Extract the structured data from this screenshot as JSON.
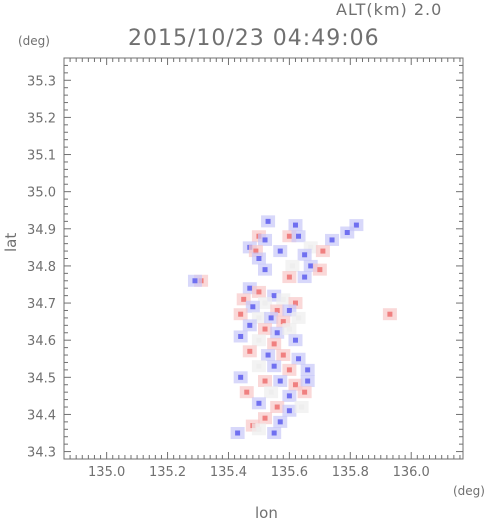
{
  "header": {
    "altitude_label": "ALT(km) 2.0",
    "timestamp": "2015/10/23 04:49:06"
  },
  "chart_data": {
    "type": "heatmap",
    "title": "2015/10/23 04:49:06",
    "xlabel": "lon",
    "ylabel": "lat",
    "x_unit": "(deg)",
    "y_unit": "(deg)",
    "xlim": [
      134.86,
      136.17
    ],
    "ylim": [
      34.28,
      35.36
    ],
    "x_ticks": [
      135.0,
      135.2,
      135.4,
      135.6,
      135.8,
      136.0
    ],
    "x_tick_labels": [
      "135.0",
      "135.2",
      "135.4",
      "135.6",
      "135.8",
      "136.0"
    ],
    "y_ticks": [
      34.3,
      34.4,
      34.5,
      34.6,
      34.7,
      34.8,
      34.9,
      35.0,
      35.1,
      35.2,
      35.3
    ],
    "y_tick_labels": [
      "34.3",
      "34.4",
      "34.5",
      "34.6",
      "34.7",
      "34.8",
      "34.9",
      "35.0",
      "35.1",
      "35.2",
      "35.3"
    ],
    "grid": false,
    "colors": {
      "positive": "#f08080",
      "positive_light": "#f8c8c8",
      "negative": "#7070f0",
      "negative_light": "#c8c8f8",
      "neutral_light": "#eeeeee"
    },
    "cells": [
      {
        "lon": 135.53,
        "lat": 34.92,
        "v": -1
      },
      {
        "lon": 135.62,
        "lat": 34.91,
        "v": -1
      },
      {
        "lon": 135.82,
        "lat": 34.91,
        "v": -1
      },
      {
        "lon": 135.79,
        "lat": 34.89,
        "v": -1
      },
      {
        "lon": 135.5,
        "lat": 34.88,
        "v": 1
      },
      {
        "lon": 135.52,
        "lat": 34.87,
        "v": -1
      },
      {
        "lon": 135.6,
        "lat": 34.88,
        "v": 1
      },
      {
        "lon": 135.63,
        "lat": 34.88,
        "v": -1
      },
      {
        "lon": 135.74,
        "lat": 34.87,
        "v": -1
      },
      {
        "lon": 135.47,
        "lat": 34.85,
        "v": -1
      },
      {
        "lon": 135.49,
        "lat": 34.84,
        "v": 1
      },
      {
        "lon": 135.57,
        "lat": 34.84,
        "v": -1
      },
      {
        "lon": 135.67,
        "lat": 34.85,
        "v": 0
      },
      {
        "lon": 135.71,
        "lat": 34.84,
        "v": 1
      },
      {
        "lon": 135.65,
        "lat": 34.83,
        "v": -1
      },
      {
        "lon": 135.5,
        "lat": 34.82,
        "v": -1
      },
      {
        "lon": 135.61,
        "lat": 34.8,
        "v": 0
      },
      {
        "lon": 135.67,
        "lat": 34.8,
        "v": -1
      },
      {
        "lon": 135.52,
        "lat": 34.79,
        "v": -1
      },
      {
        "lon": 135.7,
        "lat": 34.79,
        "v": 1
      },
      {
        "lon": 135.6,
        "lat": 34.77,
        "v": 1
      },
      {
        "lon": 135.65,
        "lat": 34.77,
        "v": -1
      },
      {
        "lon": 135.31,
        "lat": 34.76,
        "v": 1
      },
      {
        "lon": 135.29,
        "lat": 34.76,
        "v": -1
      },
      {
        "lon": 135.47,
        "lat": 34.74,
        "v": -1
      },
      {
        "lon": 135.5,
        "lat": 34.73,
        "v": 1
      },
      {
        "lon": 135.55,
        "lat": 34.72,
        "v": -1
      },
      {
        "lon": 135.45,
        "lat": 34.71,
        "v": 1
      },
      {
        "lon": 135.58,
        "lat": 34.71,
        "v": 0
      },
      {
        "lon": 135.52,
        "lat": 34.7,
        "v": 0
      },
      {
        "lon": 135.62,
        "lat": 34.7,
        "v": 1
      },
      {
        "lon": 135.48,
        "lat": 34.69,
        "v": -1
      },
      {
        "lon": 135.56,
        "lat": 34.68,
        "v": 1
      },
      {
        "lon": 135.6,
        "lat": 34.68,
        "v": -1
      },
      {
        "lon": 135.93,
        "lat": 34.67,
        "v": 1
      },
      {
        "lon": 135.44,
        "lat": 34.67,
        "v": 1
      },
      {
        "lon": 135.5,
        "lat": 34.66,
        "v": 0
      },
      {
        "lon": 135.54,
        "lat": 34.66,
        "v": -1
      },
      {
        "lon": 135.58,
        "lat": 34.65,
        "v": 1
      },
      {
        "lon": 135.63,
        "lat": 34.66,
        "v": 0
      },
      {
        "lon": 135.47,
        "lat": 34.64,
        "v": -1
      },
      {
        "lon": 135.52,
        "lat": 34.63,
        "v": 1
      },
      {
        "lon": 135.56,
        "lat": 34.62,
        "v": -1
      },
      {
        "lon": 135.6,
        "lat": 34.63,
        "v": 0
      },
      {
        "lon": 135.44,
        "lat": 34.61,
        "v": -1
      },
      {
        "lon": 135.5,
        "lat": 34.6,
        "v": 0
      },
      {
        "lon": 135.55,
        "lat": 34.59,
        "v": 1
      },
      {
        "lon": 135.62,
        "lat": 34.6,
        "v": -1
      },
      {
        "lon": 135.47,
        "lat": 34.57,
        "v": 1
      },
      {
        "lon": 135.53,
        "lat": 34.56,
        "v": -1
      },
      {
        "lon": 135.58,
        "lat": 34.56,
        "v": 1
      },
      {
        "lon": 135.63,
        "lat": 34.55,
        "v": -1
      },
      {
        "lon": 135.5,
        "lat": 34.53,
        "v": 0
      },
      {
        "lon": 135.55,
        "lat": 34.53,
        "v": -1
      },
      {
        "lon": 135.6,
        "lat": 34.52,
        "v": 1
      },
      {
        "lon": 135.66,
        "lat": 34.52,
        "v": -1
      },
      {
        "lon": 135.44,
        "lat": 34.5,
        "v": -1
      },
      {
        "lon": 135.52,
        "lat": 34.49,
        "v": 1
      },
      {
        "lon": 135.57,
        "lat": 34.49,
        "v": -1
      },
      {
        "lon": 135.62,
        "lat": 34.48,
        "v": 1
      },
      {
        "lon": 135.66,
        "lat": 34.49,
        "v": -1
      },
      {
        "lon": 135.46,
        "lat": 34.46,
        "v": 1
      },
      {
        "lon": 135.54,
        "lat": 34.46,
        "v": 0
      },
      {
        "lon": 135.6,
        "lat": 34.45,
        "v": -1
      },
      {
        "lon": 135.65,
        "lat": 34.46,
        "v": 1
      },
      {
        "lon": 135.5,
        "lat": 34.43,
        "v": -1
      },
      {
        "lon": 135.56,
        "lat": 34.42,
        "v": 1
      },
      {
        "lon": 135.6,
        "lat": 34.41,
        "v": -1
      },
      {
        "lon": 135.64,
        "lat": 34.42,
        "v": 0
      },
      {
        "lon": 135.52,
        "lat": 34.39,
        "v": 1
      },
      {
        "lon": 135.57,
        "lat": 34.38,
        "v": -1
      },
      {
        "lon": 135.48,
        "lat": 34.37,
        "v": 1
      },
      {
        "lon": 135.43,
        "lat": 34.35,
        "v": -1
      },
      {
        "lon": 135.5,
        "lat": 34.36,
        "v": 0
      },
      {
        "lon": 135.55,
        "lat": 34.35,
        "v": -1
      }
    ]
  }
}
